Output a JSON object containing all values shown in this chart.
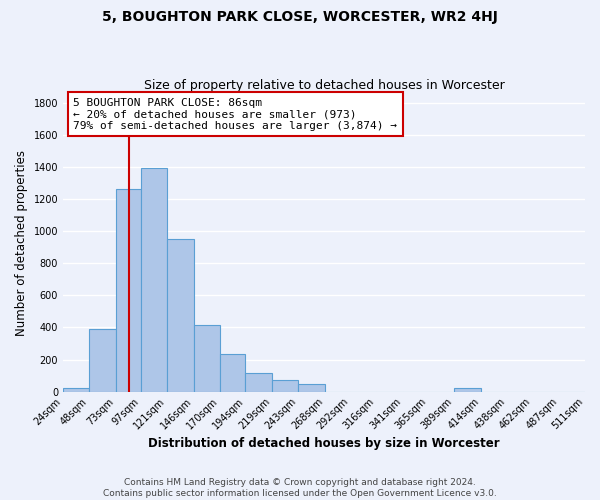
{
  "title": "5, BOUGHTON PARK CLOSE, WORCESTER, WR2 4HJ",
  "subtitle": "Size of property relative to detached houses in Worcester",
  "xlabel": "Distribution of detached houses by size in Worcester",
  "ylabel": "Number of detached properties",
  "bar_left_edges": [
    24,
    48,
    73,
    97,
    121,
    146,
    170,
    194,
    219,
    243,
    268,
    292,
    316,
    341,
    365,
    389,
    414,
    438,
    462,
    487
  ],
  "bar_widths": [
    24,
    25,
    24,
    24,
    25,
    24,
    24,
    25,
    24,
    25,
    24,
    24,
    25,
    24,
    24,
    25,
    24,
    24,
    25,
    24
  ],
  "bar_heights": [
    25,
    390,
    1260,
    1390,
    950,
    415,
    235,
    115,
    70,
    45,
    0,
    0,
    0,
    0,
    0,
    20,
    0,
    0,
    0,
    0
  ],
  "bar_color": "#aec6e8",
  "bar_edgecolor": "#5a9fd4",
  "tick_labels": [
    "24sqm",
    "48sqm",
    "73sqm",
    "97sqm",
    "121sqm",
    "146sqm",
    "170sqm",
    "194sqm",
    "219sqm",
    "243sqm",
    "268sqm",
    "292sqm",
    "316sqm",
    "341sqm",
    "365sqm",
    "389sqm",
    "414sqm",
    "438sqm",
    "462sqm",
    "487sqm",
    "511sqm"
  ],
  "vline_x": 86,
  "vline_color": "#cc0000",
  "annotation_line1": "5 BOUGHTON PARK CLOSE: 86sqm",
  "annotation_line2": "← 20% of detached houses are smaller (973)",
  "annotation_line3": "79% of semi-detached houses are larger (3,874) →",
  "ylim": [
    0,
    1850
  ],
  "yticks": [
    0,
    200,
    400,
    600,
    800,
    1000,
    1200,
    1400,
    1600,
    1800
  ],
  "footer_text": "Contains HM Land Registry data © Crown copyright and database right 2024.\nContains public sector information licensed under the Open Government Licence v3.0.",
  "bg_color": "#edf1fb",
  "grid_color": "#ffffff",
  "title_fontsize": 10,
  "subtitle_fontsize": 9,
  "axis_label_fontsize": 8.5,
  "tick_fontsize": 7,
  "annotation_fontsize": 8,
  "footer_fontsize": 6.5
}
